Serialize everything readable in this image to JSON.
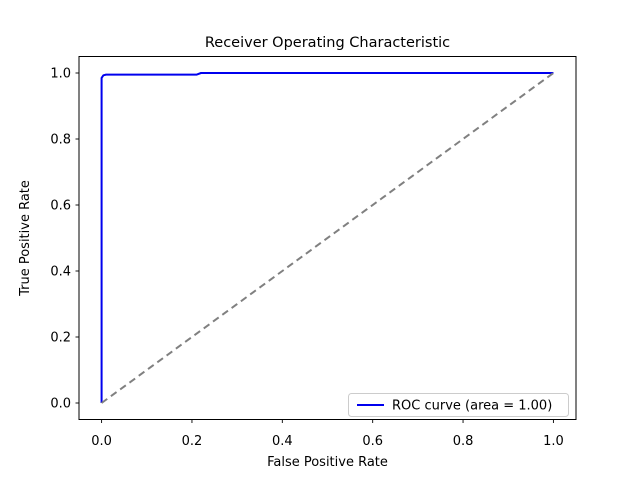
{
  "chart_data": {
    "type": "line",
    "title": "Receiver Operating Characteristic",
    "xlabel": "False Positive Rate",
    "ylabel": "True Positive Rate",
    "xlim": [
      -0.05,
      1.05
    ],
    "ylim": [
      -0.05,
      1.05
    ],
    "grid": false,
    "x_tick_values": [
      0.0,
      0.2,
      0.4,
      0.6,
      0.8,
      1.0
    ],
    "x_tick_labels": [
      "0.0",
      "0.2",
      "0.4",
      "0.6",
      "0.8",
      "1.0"
    ],
    "y_tick_values": [
      0.0,
      0.2,
      0.4,
      0.6,
      0.8,
      1.0
    ],
    "y_tick_labels": [
      "0.0",
      "0.2",
      "0.4",
      "0.6",
      "0.8",
      "1.0"
    ],
    "auc": "1.00",
    "legend": {
      "label": "ROC curve (area = 1.00)",
      "position": "lower right"
    },
    "series": [
      {
        "name": "ROC curve (area = 1.00)",
        "color": "#0000ee",
        "dash": "solid",
        "linewidth": 2,
        "x": [
          0.0,
          0.0,
          0.004,
          0.01,
          0.21,
          0.22,
          1.0
        ],
        "y": [
          0.0,
          0.985,
          0.993,
          0.995,
          0.995,
          1.0,
          1.0
        ]
      },
      {
        "name": "chance-diagonal",
        "color": "#808080",
        "dash": "dashed",
        "linewidth": 2,
        "x": [
          0.0,
          1.0
        ],
        "y": [
          0.0,
          1.0
        ]
      }
    ]
  }
}
